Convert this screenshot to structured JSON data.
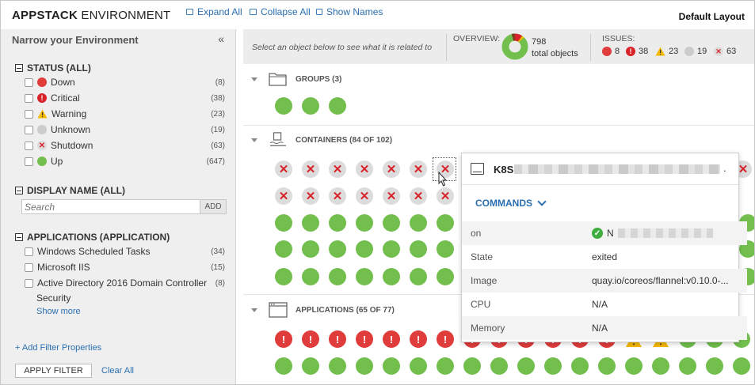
{
  "header": {
    "title_bold": "APPSTACK",
    "title_rest": " ENVIRONMENT",
    "expand_all": "Expand All",
    "collapse_all": "Collapse All",
    "show_names": "Show Names",
    "layout": "Default Layout"
  },
  "sidebar": {
    "title": "Narrow your Environment",
    "collapse_glyph": "«",
    "status_head": "STATUS (ALL)",
    "status": [
      {
        "label": "Down",
        "count": "(8)"
      },
      {
        "label": "Critical",
        "count": "(38)"
      },
      {
        "label": "Warning",
        "count": "(23)"
      },
      {
        "label": "Unknown",
        "count": "(19)"
      },
      {
        "label": "Shutdown",
        "count": "(63)"
      },
      {
        "label": "Up",
        "count": "(647)"
      }
    ],
    "display_name_head": "DISPLAY NAME (ALL)",
    "search_placeholder": "Search",
    "add_label": "ADD",
    "applications_head": "APPLICATIONS (APPLICATION)",
    "applications": [
      {
        "label": "Windows Scheduled Tasks",
        "count": "(34)"
      },
      {
        "label": "Microsoft IIS",
        "count": "(15)"
      },
      {
        "label": "Active Directory 2016 Domain Controller",
        "count": "(8)"
      }
    ],
    "app_wrap_line": "Security",
    "show_more": "Show more",
    "add_filter": "+ Add Filter Properties",
    "apply_filter": "APPLY FILTER",
    "clear_all": "Clear All"
  },
  "overview": {
    "hint": "Select an object below to see what it is related to",
    "label": "OVERVIEW:",
    "total_count": "798",
    "total_label": "total objects",
    "issues_label": "ISSUES:",
    "issues": {
      "down": "8",
      "critical": "38",
      "warning": "23",
      "unknown": "19",
      "shutdown": "63"
    }
  },
  "sections": {
    "groups": "GROUPS (3)",
    "containers": "CONTAINERS (84 OF 102)",
    "applications": "APPLICATIONS (65 OF 77)"
  },
  "popup": {
    "title_prefix": "K8S",
    "title_suffix": ".",
    "commands": "COMMANDS",
    "props": [
      {
        "key": "on",
        "value": "N"
      },
      {
        "key": "State",
        "value": "exited"
      },
      {
        "key": "Image",
        "value": "quay.io/coreos/flannel:v0.10.0-..."
      },
      {
        "key": "CPU",
        "value": "N/A"
      },
      {
        "key": "Memory",
        "value": "N/A"
      }
    ]
  },
  "colors": {
    "up": "#72bf4d",
    "down": "#e03c3c",
    "warning": "#f5b800",
    "unknown": "#cccccc",
    "shutdown": "#d9232b",
    "link": "#2a6fb0"
  }
}
